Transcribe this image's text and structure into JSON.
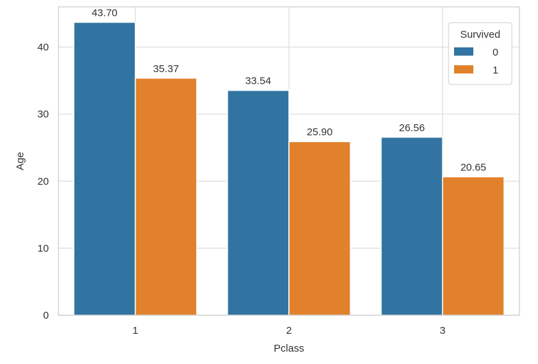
{
  "colors": {
    "series_0": "#3274a1",
    "series_1": "#e1812c",
    "grid": "#dddddd",
    "frame": "#cccccc",
    "text": "#333333"
  },
  "chart_data": {
    "type": "bar",
    "title": "",
    "xlabel": "Pclass",
    "ylabel": "Age",
    "categories": [
      "1",
      "2",
      "3"
    ],
    "series": [
      {
        "name": "0",
        "values": [
          43.7,
          33.54,
          26.56
        ]
      },
      {
        "name": "1",
        "values": [
          35.37,
          25.9,
          20.65
        ]
      }
    ],
    "data_labels": [
      [
        "43.70",
        "33.54",
        "26.56"
      ],
      [
        "35.37",
        "25.90",
        "20.65"
      ]
    ],
    "ylim": [
      0,
      46
    ],
    "yticks": [
      0,
      10,
      20,
      30,
      40
    ],
    "grid": true,
    "legend": {
      "title": "Survived",
      "placement": "top-right"
    }
  }
}
